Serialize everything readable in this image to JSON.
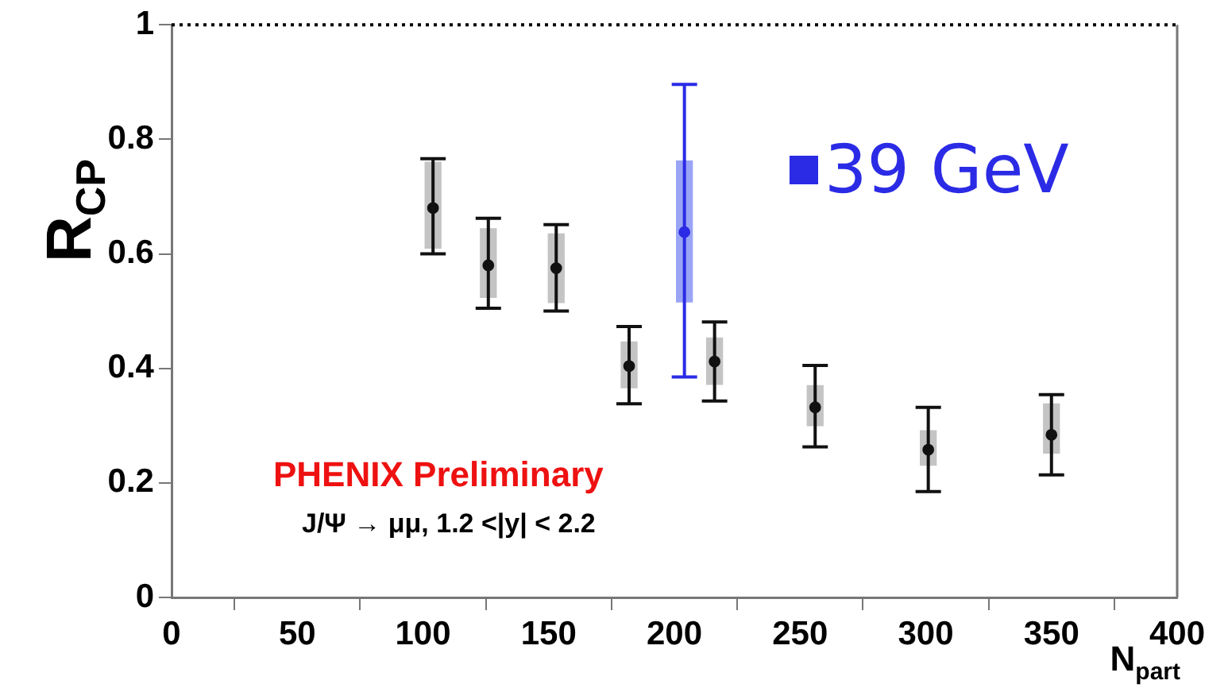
{
  "chart_data": {
    "type": "scatter",
    "xlabel": "N$_{part}$",
    "ylabel": "R$_{CP}$",
    "xlim": [
      0,
      400
    ],
    "xticks": [
      0,
      50,
      100,
      150,
      200,
      250,
      300,
      350,
      400
    ],
    "ylim": [
      0,
      1
    ],
    "yticks": [
      0,
      0.2,
      0.4,
      0.6,
      0.8,
      1
    ],
    "grid": false,
    "legend": "top right",
    "marker": "circle",
    "annotations": [
      "PHENIX Preliminary",
      "J/Ψ → μμ, 1.2 <|y| < 2.2"
    ],
    "ref_lines": [
      {
        "axis": "y",
        "value": 1,
        "color": "#000000",
        "line_style": "dotted"
      }
    ],
    "series": [
      {
        "color": "#111111",
        "x": [
          104,
          126,
          153,
          182,
          216,
          256,
          301,
          350
        ],
        "values": [
          0.68,
          0.58,
          0.575,
          0.404,
          0.412,
          0.332,
          0.258,
          0.284
        ],
        "errors": [
          [
            0.6,
            0.766
          ],
          [
            0.505,
            0.662
          ],
          [
            0.5,
            0.651
          ],
          [
            0.338,
            0.473
          ],
          [
            0.343,
            0.481
          ],
          [
            0.263,
            0.405
          ],
          [
            0.185,
            0.332
          ],
          [
            0.214,
            0.354
          ]
        ]
      },
      {
        "name": "39 GeV",
        "color": "#2b2be6",
        "x": [
          204
        ],
        "values": [
          0.638
        ],
        "errors": [
          [
            0.385,
            0.896
          ]
        ]
      },
      {
        "type": "bar",
        "color": "#c4c4c4",
        "x": [
          104,
          126,
          153,
          182,
          216,
          256,
          301,
          350
        ],
        "base": [
          0.61,
          0.524,
          0.515,
          0.366,
          0.372,
          0.3,
          0.231,
          0.252
        ],
        "values": [
          0.15,
          0.12,
          0.12,
          0.08,
          0.081,
          0.07,
          0.06,
          0.086
        ]
      },
      {
        "type": "bar",
        "color": "#9aa4f5",
        "x": [
          204
        ],
        "base": [
          0.516
        ],
        "values": [
          0.246
        ]
      }
    ]
  }
}
